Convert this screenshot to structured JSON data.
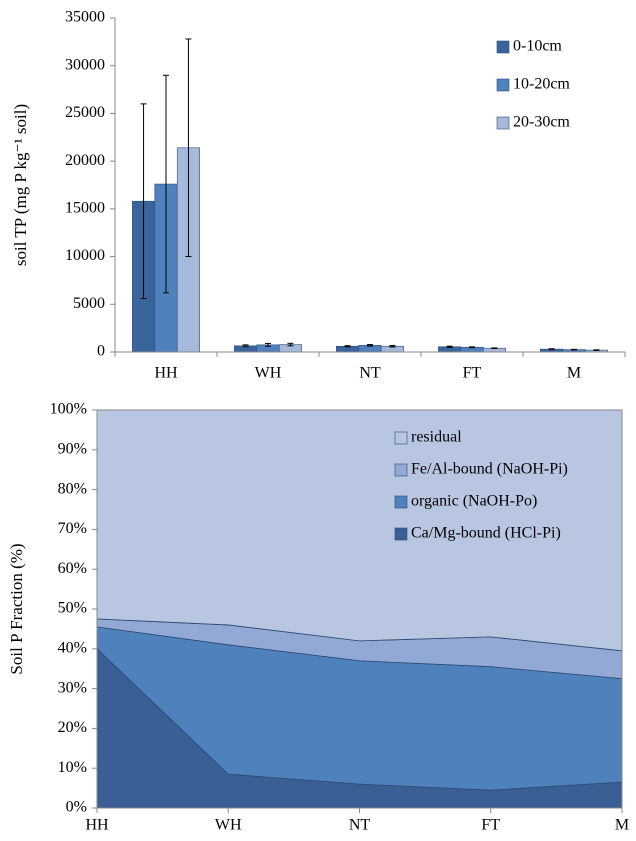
{
  "chart_data": [
    {
      "type": "bar",
      "ylabel": "soil TP (mg P kg⁻¹ soil)",
      "categories": [
        "HH",
        "WH",
        "NT",
        "FT",
        "M"
      ],
      "series": [
        {
          "name": "0-10cm",
          "color": "#3a649c",
          "values": [
            15800,
            650,
            600,
            550,
            300
          ],
          "errors": [
            10200,
            100,
            60,
            60,
            40
          ]
        },
        {
          "name": "10-20cm",
          "color": "#4f81bd",
          "values": [
            17600,
            750,
            700,
            500,
            250
          ],
          "errors": [
            11400,
            150,
            80,
            40,
            30
          ]
        },
        {
          "name": "20-30cm",
          "color": "#a7b9db",
          "values": [
            21400,
            780,
            600,
            400,
            200
          ],
          "errors": [
            11400,
            130,
            80,
            30,
            30
          ]
        }
      ],
      "ylim": [
        0,
        35000
      ],
      "yticks": [
        0,
        5000,
        10000,
        15000,
        20000,
        25000,
        30000,
        35000
      ],
      "grid": false,
      "legend": "top-right"
    },
    {
      "type": "area",
      "stacked": true,
      "ylabel": "Soil P Fraction (%)",
      "categories": [
        "HH",
        "WH",
        "NT",
        "FT",
        "M"
      ],
      "series": [
        {
          "name": "Ca/Mg-bound (HCl-Pi)",
          "color": "#3a5f95",
          "values": [
            40,
            8.5,
            6,
            4.5,
            6.5
          ]
        },
        {
          "name": "organic (NaOH-Po)",
          "color": "#4f81bd",
          "values": [
            5.5,
            32.5,
            31,
            31,
            26
          ]
        },
        {
          "name": "Fe/Al-bound (NaOH-Pi)",
          "color": "#93a9d5",
          "values": [
            2,
            5,
            5,
            7.5,
            7
          ]
        },
        {
          "name": "residual",
          "color": "#b9c6e1",
          "values": [
            52.5,
            54,
            58,
            57,
            60.5
          ]
        }
      ],
      "ylim": [
        0,
        100
      ],
      "yticks": [
        {
          "value": 0,
          "label": "0%"
        },
        {
          "value": 10,
          "label": "10%"
        },
        {
          "value": 20,
          "label": "20%"
        },
        {
          "value": 30,
          "label": "30%"
        },
        {
          "value": 40,
          "label": "40%"
        },
        {
          "value": 50,
          "label": "50%"
        },
        {
          "value": 60,
          "label": "60%"
        },
        {
          "value": 70,
          "label": "70%"
        },
        {
          "value": 80,
          "label": "80%"
        },
        {
          "value": 90,
          "label": "90%"
        },
        {
          "value": 100,
          "label": "100%"
        }
      ],
      "grid": false,
      "legend": "top-right"
    }
  ]
}
